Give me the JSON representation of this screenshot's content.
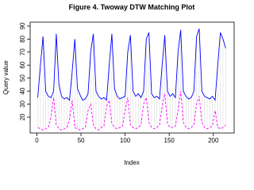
{
  "chart_data": {
    "type": "line",
    "title": "Figure 4. Twoway DTW Matching Plot",
    "x_label": "Index",
    "y_label": "Query value",
    "x": [
      1,
      4,
      7,
      10,
      13,
      16,
      19,
      22,
      25,
      28,
      31,
      34,
      37,
      40,
      43,
      46,
      49,
      52,
      55,
      58,
      61,
      64,
      67,
      70,
      73,
      76,
      79,
      82,
      85,
      88,
      91,
      94,
      97,
      100,
      103,
      106,
      109,
      112,
      115,
      118,
      121,
      124,
      127,
      130,
      133,
      136,
      139,
      142,
      145,
      148,
      151,
      154,
      157,
      160,
      163,
      166,
      169,
      172,
      175,
      178,
      181,
      184,
      187,
      190,
      193,
      196,
      199,
      202,
      205,
      208,
      211,
      214
    ],
    "series": [
      {
        "color": "#0000ff",
        "line_style": "solid",
        "values": [
          35,
          60,
          82,
          40,
          36,
          35,
          40,
          84,
          45,
          36,
          34,
          35,
          33,
          55,
          80,
          42,
          37,
          33,
          34,
          38,
          70,
          84,
          40,
          36,
          34,
          35,
          33,
          60,
          84,
          42,
          36,
          34,
          35,
          36,
          70,
          83,
          40,
          36,
          38,
          35,
          40,
          80,
          85,
          38,
          35,
          36,
          34,
          60,
          83,
          40,
          36,
          38,
          35,
          70,
          87,
          40,
          36,
          34,
          35,
          40,
          82,
          88,
          40,
          36,
          35,
          34,
          36,
          33,
          60,
          85,
          80,
          73
        ]
      },
      {
        "color": "#ff00ff",
        "line_style": "dashed",
        "values": [
          12,
          11,
          10,
          11,
          12,
          20,
          35,
          14,
          11,
          10,
          11,
          12,
          18,
          33,
          12,
          11,
          10,
          11,
          12,
          25,
          30,
          14,
          11,
          10,
          12,
          13,
          28,
          33,
          15,
          12,
          11,
          12,
          13,
          25,
          35,
          14,
          12,
          11,
          12,
          14,
          30,
          35,
          16,
          12,
          11,
          12,
          14,
          28,
          38,
          15,
          12,
          12,
          13,
          25,
          40,
          16,
          12,
          11,
          12,
          14,
          30,
          36,
          16,
          12,
          11,
          12,
          13,
          25,
          12,
          11,
          12,
          14
        ]
      }
    ],
    "matching_color": "#aaaaaa",
    "xlim": [
      -7.6,
      223.6
    ],
    "ylim": [
      7.8,
      93
    ],
    "xticks": [
      0,
      50,
      100,
      150,
      200
    ],
    "yticks": [
      20,
      30,
      40,
      50,
      60,
      70,
      80,
      90
    ]
  }
}
